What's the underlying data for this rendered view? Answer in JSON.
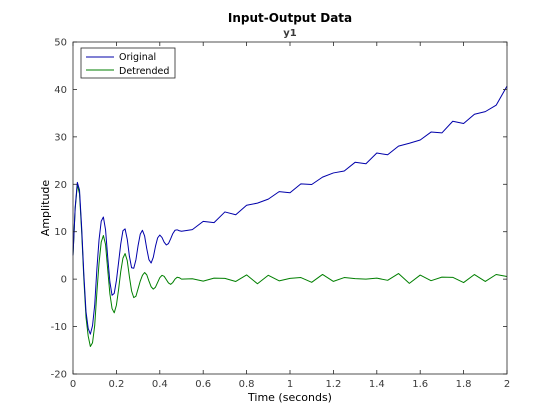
{
  "chart_data": {
    "type": "line",
    "title": "Input-Output Data",
    "subtitle": "y1",
    "xlabel": "Time (seconds)",
    "ylabel": "Amplitude",
    "xlim": [
      0,
      2
    ],
    "ylim": [
      -20,
      50
    ],
    "xticks": [
      0,
      0.2,
      0.4,
      0.6,
      0.8,
      1,
      1.2,
      1.4,
      1.6,
      1.8,
      2
    ],
    "xtick_labels": [
      "0",
      "0.2",
      "0.4",
      "0.6",
      "0.8",
      "1",
      "1.2",
      "1.4",
      "1.6",
      "1.8",
      "2"
    ],
    "yticks": [
      -20,
      -10,
      0,
      10,
      20,
      30,
      40,
      50
    ],
    "ytick_labels": [
      "-20",
      "-10",
      "0",
      "10",
      "20",
      "30",
      "40",
      "50"
    ],
    "grid": false,
    "legend_position": "top-left",
    "series": [
      {
        "name": "Original",
        "color": "#0000aa",
        "x": [
          0,
          0.01,
          0.02,
          0.03,
          0.04,
          0.05,
          0.06,
          0.07,
          0.08,
          0.09,
          0.1,
          0.11,
          0.12,
          0.13,
          0.14,
          0.15,
          0.16,
          0.17,
          0.18,
          0.19,
          0.2,
          0.21,
          0.22,
          0.23,
          0.24,
          0.25,
          0.26,
          0.27,
          0.28,
          0.29,
          0.3,
          0.31,
          0.32,
          0.33,
          0.34,
          0.35,
          0.36,
          0.37,
          0.38,
          0.39,
          0.4,
          0.41,
          0.42,
          0.43,
          0.44,
          0.45,
          0.46,
          0.47,
          0.48,
          0.49,
          0.5,
          0.55,
          0.6,
          0.65,
          0.7,
          0.75,
          0.8,
          0.85,
          0.9,
          0.95,
          1.0,
          1.05,
          1.1,
          1.15,
          1.2,
          1.25,
          1.3,
          1.35,
          1.4,
          1.45,
          1.5,
          1.55,
          1.6,
          1.65,
          1.7,
          1.75,
          1.8,
          1.85,
          1.9,
          1.95,
          2.0
        ],
        "y": [
          5.0,
          15.1,
          20.4,
          18.8,
          10.8,
          1.0,
          -6.9,
          -10.4,
          -11.6,
          -9.8,
          -5.5,
          2.1,
          8.3,
          12.2,
          13.1,
          10.4,
          4.6,
          -0.6,
          -3.4,
          -3.0,
          -0.3,
          3.5,
          7.4,
          10.2,
          10.6,
          8.4,
          4.8,
          2.4,
          2.3,
          4.1,
          7.1,
          9.5,
          10.3,
          9.1,
          6.4,
          4.1,
          3.4,
          4.6,
          6.9,
          8.7,
          9.3,
          8.8,
          7.8,
          7.2,
          7.5,
          8.5,
          9.6,
          10.3,
          10.4,
          10.2,
          10.1,
          10.8,
          11.6,
          12.6,
          13.5,
          14.1,
          15.3,
          16.0,
          17.2,
          17.9,
          18.9,
          19.4,
          20.5,
          21.2,
          22.4,
          23.1,
          24.1,
          25.0,
          25.9,
          26.8,
          27.7,
          28.7,
          29.6,
          30.5,
          31.5,
          32.6,
          33.4,
          34.4,
          35.4,
          36.9,
          40.2
        ]
      },
      {
        "name": "Detrended",
        "color": "#007f00",
        "x": [
          0,
          0.01,
          0.02,
          0.03,
          0.04,
          0.05,
          0.06,
          0.07,
          0.08,
          0.09,
          0.1,
          0.11,
          0.12,
          0.13,
          0.14,
          0.15,
          0.16,
          0.17,
          0.18,
          0.19,
          0.2,
          0.21,
          0.22,
          0.23,
          0.24,
          0.25,
          0.26,
          0.27,
          0.28,
          0.29,
          0.3,
          0.31,
          0.32,
          0.33,
          0.34,
          0.35,
          0.36,
          0.37,
          0.38,
          0.39,
          0.4,
          0.41,
          0.42,
          0.43,
          0.44,
          0.45,
          0.46,
          0.47,
          0.48,
          0.49,
          0.5,
          0.55,
          0.6,
          0.65,
          0.7,
          0.75,
          0.8,
          0.85,
          0.9,
          0.95,
          1.0,
          1.05,
          1.1,
          1.15,
          1.2,
          1.25,
          1.3,
          1.35,
          1.4,
          1.45,
          1.5,
          1.55,
          1.6,
          1.65,
          1.7,
          1.75,
          1.8,
          1.85,
          1.9,
          1.95,
          2.0
        ],
        "y": [
          5.0,
          14.8,
          19.9,
          18.0,
          9.9,
          0.0,
          -8.1,
          -12.0,
          -14.2,
          -13.4,
          -9.8,
          -2.8,
          3.4,
          7.8,
          9.2,
          7.3,
          2.0,
          -3.1,
          -6.2,
          -7.1,
          -5.5,
          -2.2,
          1.6,
          4.4,
          5.4,
          3.9,
          0.5,
          -2.5,
          -3.9,
          -3.6,
          -2.0,
          -0.4,
          0.8,
          1.4,
          0.9,
          -0.4,
          -1.6,
          -2.1,
          -1.7,
          -0.7,
          0.3,
          0.8,
          0.6,
          -0.1,
          -0.8,
          -1.1,
          -0.7,
          0.0,
          0.4,
          0.3,
          0.0,
          -0.4,
          -0.2,
          0.3,
          -0.2,
          0.1,
          0.2,
          -0.3,
          0.3,
          -0.1,
          0.2,
          0.0,
          -0.1,
          0.3,
          0.2,
          -0.2,
          0.4,
          0.0,
          -0.1,
          0.3,
          0.5,
          -0.2,
          0.3,
          0.0,
          0.4,
          0.1,
          -0.2,
          0.3,
          0.2,
          0.4,
          0.9
        ]
      }
    ]
  }
}
